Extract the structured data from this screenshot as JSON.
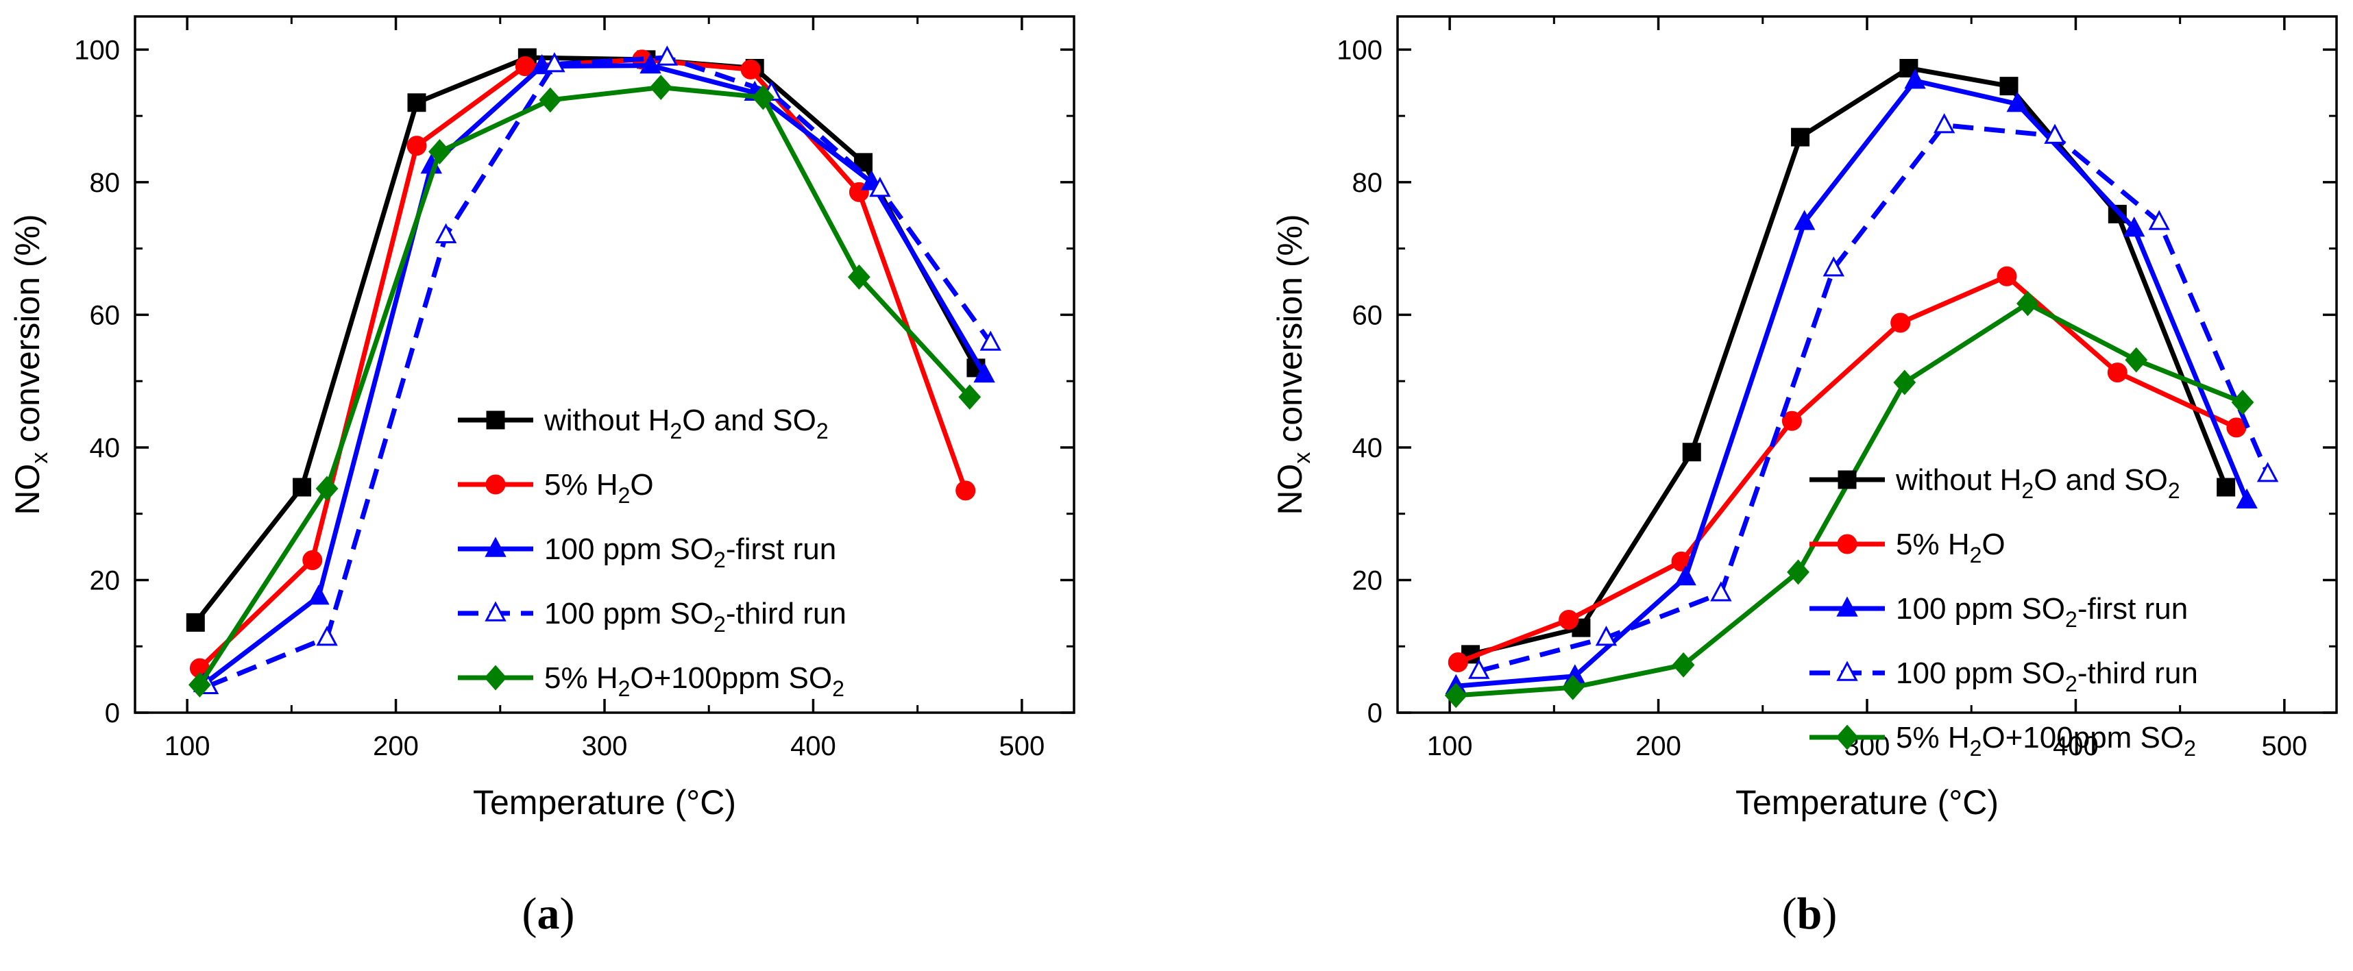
{
  "chart_data": [
    {
      "type": "line",
      "panel_label": {
        "open": "(",
        "letter": "a",
        "close": ")"
      },
      "xlabel": "Temperature (",
      "xlabel_unit": "°C)",
      "ylabel_main": "NO",
      "ylabel_sub": "x",
      "ylabel_rest": " conversion (%)",
      "xlim": [
        75,
        525
      ],
      "ylim": [
        0,
        105
      ],
      "xticks": [
        100,
        200,
        300,
        400,
        500
      ],
      "yticks": [
        0,
        20,
        40,
        60,
        80,
        100
      ],
      "grid": false,
      "legend_position": "lower-center",
      "series": [
        {
          "name": "without H2O and SO2",
          "label_parts": [
            "without H",
            "2",
            "O and SO",
            "2"
          ],
          "color": "#000000",
          "marker": "square",
          "dashed": false,
          "filled": true,
          "x": [
            104,
            155,
            210,
            263,
            320,
            372,
            424,
            478
          ],
          "y": [
            13.6,
            34,
            92,
            98.8,
            98.5,
            97.2,
            83,
            52
          ]
        },
        {
          "name": "5% H2O",
          "label_parts": [
            "5% H",
            "2",
            "O"
          ],
          "color": "#ff0000",
          "marker": "circle",
          "dashed": false,
          "filled": true,
          "x": [
            106,
            160,
            210,
            262,
            318,
            370,
            422,
            473
          ],
          "y": [
            6.7,
            23,
            85.5,
            97.5,
            98.5,
            97,
            78.5,
            33.5
          ]
        },
        {
          "name": "100 ppm SO2-first run",
          "label_parts": [
            "100 ppm SO",
            "2",
            "-first run"
          ],
          "color": "#0000ff",
          "marker": "triangle",
          "dashed": false,
          "filled": true,
          "x": [
            108,
            163,
            217,
            270,
            322,
            372,
            428,
            482
          ],
          "y": [
            4.3,
            17.5,
            82.5,
            97.5,
            97.6,
            93.5,
            80,
            51
          ]
        },
        {
          "name": "100 ppm SO2-third run",
          "label_parts": [
            "100 ppm SO",
            "2",
            "-third run"
          ],
          "color": "#0000ff",
          "marker": "triangle",
          "dashed": true,
          "filled": false,
          "x": [
            110,
            167,
            224,
            276,
            330,
            380,
            432,
            485
          ],
          "y": [
            4,
            11.3,
            72,
            97.8,
            98.8,
            93.5,
            79,
            55.8
          ]
        },
        {
          "name": "5% H2O+100ppm SO2",
          "label_parts": [
            "5% H",
            "2",
            "O+100ppm SO",
            "2"
          ],
          "color": "#008000",
          "marker": "diamond",
          "dashed": false,
          "filled": true,
          "x": [
            106,
            167,
            221,
            274,
            327,
            376,
            422,
            475
          ],
          "y": [
            4.2,
            33.8,
            84.6,
            92.4,
            94.3,
            92.8,
            65.7,
            47.6
          ]
        }
      ]
    },
    {
      "type": "line",
      "panel_label": {
        "open": "(",
        "letter": "b",
        "close": ")"
      },
      "xlabel": "Temperature (",
      "xlabel_unit": "°C)",
      "ylabel_main": "NO",
      "ylabel_sub": "x",
      "ylabel_rest": " conversion (%)",
      "xlim": [
        75,
        525
      ],
      "ylim": [
        0,
        105
      ],
      "xticks": [
        100,
        200,
        300,
        400,
        500
      ],
      "yticks": [
        0,
        20,
        40,
        60,
        80,
        100
      ],
      "grid": false,
      "legend_position": "lower-center",
      "series": [
        {
          "name": "without H2O and SO2",
          "label_parts": [
            "without H",
            "2",
            "O and SO",
            "2"
          ],
          "color": "#000000",
          "marker": "square",
          "dashed": false,
          "filled": true,
          "x": [
            110,
            163,
            216,
            268,
            320,
            368,
            420,
            472
          ],
          "y": [
            8.8,
            12.8,
            39.3,
            86.8,
            97.2,
            94.5,
            75.2,
            34
          ]
        },
        {
          "name": "5% H2O",
          "label_parts": [
            "5% H",
            "2",
            "O"
          ],
          "color": "#ff0000",
          "marker": "circle",
          "dashed": false,
          "filled": true,
          "x": [
            104,
            157,
            211,
            264,
            316,
            367,
            420,
            477
          ],
          "y": [
            7.6,
            14,
            22.8,
            44,
            58.8,
            65.8,
            51.3,
            43
          ]
        },
        {
          "name": "100 ppm SO2-first run",
          "label_parts": [
            "100 ppm SO",
            "2",
            "-first run"
          ],
          "color": "#0000ff",
          "marker": "triangle",
          "dashed": false,
          "filled": true,
          "x": [
            103,
            160,
            213,
            270,
            323,
            372,
            428,
            482
          ],
          "y": [
            4,
            5.5,
            20.4,
            74,
            95.3,
            91.8,
            73,
            32
          ]
        },
        {
          "name": "100 ppm SO2-third run",
          "label_parts": [
            "100 ppm SO",
            "2",
            "-third run"
          ],
          "color": "#0000ff",
          "marker": "triangle",
          "dashed": true,
          "filled": false,
          "x": [
            114,
            175,
            230,
            284,
            337,
            390,
            440,
            492
          ],
          "y": [
            6.3,
            11.3,
            18,
            67,
            88.6,
            87,
            74,
            36
          ]
        },
        {
          "name": "5% H2O+100ppm SO2",
          "label_parts": [
            "5% H",
            "2",
            "O+100ppm SO",
            "2"
          ],
          "color": "#008000",
          "marker": "diamond",
          "dashed": false,
          "filled": true,
          "x": [
            103,
            159,
            212,
            267,
            318,
            377,
            429,
            480
          ],
          "y": [
            2.6,
            3.8,
            7.2,
            21.2,
            49.8,
            61.7,
            53.2,
            46.8
          ]
        }
      ]
    }
  ]
}
